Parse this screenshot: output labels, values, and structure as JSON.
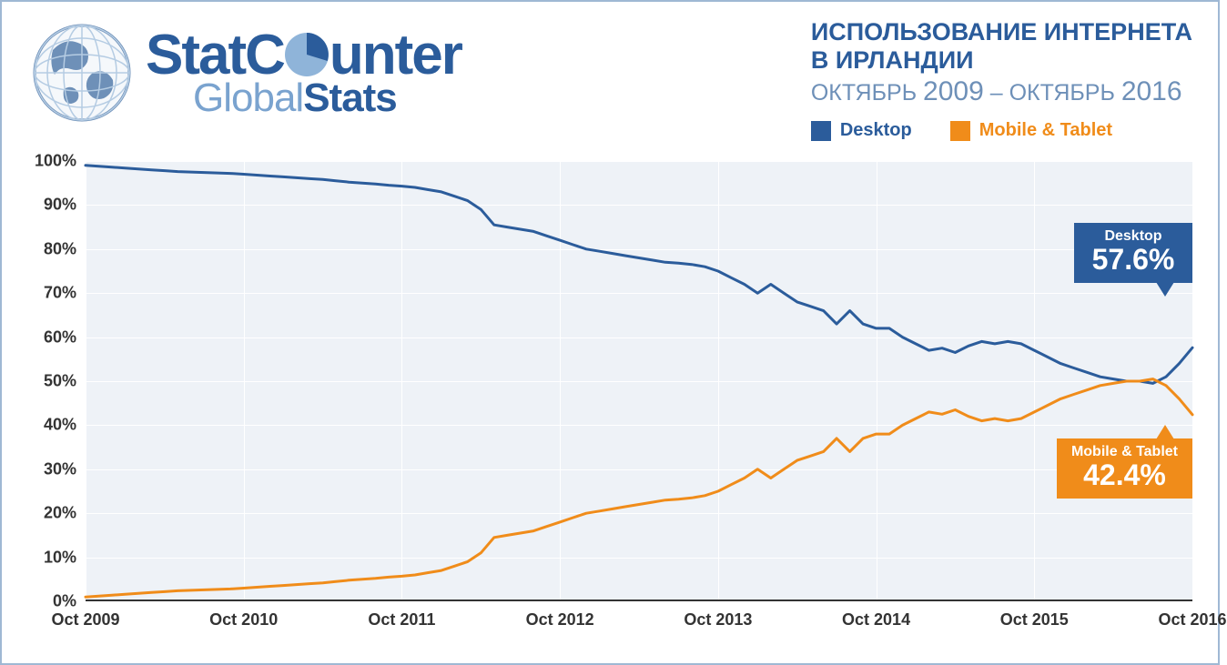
{
  "logo": {
    "line1_a": "StatC",
    "line1_b": "unter",
    "line2_a": "Global",
    "line2_b": "Stats",
    "blue": "#2b5c9b",
    "light_blue": "#7aa3cf",
    "pie_dark": "#2b5c9b",
    "pie_light": "#8fb4d9"
  },
  "title": {
    "line1": "ИСПОЛЬЗОВАНИЕ ИНТЕРНЕТА",
    "line2": "В ИРЛАНДИИ",
    "sub_prefix1": "ОКТЯБРЬ ",
    "year1": "2009",
    "sep": " – ",
    "sub_prefix2": "ОКТЯБРЬ ",
    "year2": "2016",
    "main_color": "#2b5c9b",
    "sub_color": "#6e90b8"
  },
  "legend": [
    {
      "label": "Desktop",
      "color": "#2b5c9b"
    },
    {
      "label": "Mobile & Tablet",
      "color": "#f08c1a"
    }
  ],
  "chart": {
    "type": "line",
    "background_color": "#eef2f7",
    "grid_color": "#ffffff",
    "axis_color": "#333333",
    "line_width": 3,
    "ylim": [
      0,
      100
    ],
    "ytick_step": 10,
    "yticks": [
      0,
      10,
      20,
      30,
      40,
      50,
      60,
      70,
      80,
      90,
      100
    ],
    "ytick_suffix": "%",
    "xlim": [
      0,
      84
    ],
    "xtick_positions": [
      0,
      12,
      24,
      36,
      48,
      60,
      72,
      84
    ],
    "xtick_labels": [
      "Oct 2009",
      "Oct 2010",
      "Oct 2011",
      "Oct 2012",
      "Oct 2013",
      "Oct 2014",
      "Oct 2015",
      "Oct 2016"
    ],
    "series": [
      {
        "name": "Desktop",
        "color": "#2b5c9b",
        "values": [
          99.0,
          98.8,
          98.6,
          98.4,
          98.2,
          98.0,
          97.8,
          97.6,
          97.5,
          97.4,
          97.3,
          97.2,
          97.0,
          96.8,
          96.6,
          96.4,
          96.2,
          96.0,
          95.8,
          95.5,
          95.2,
          95.0,
          94.8,
          94.5,
          94.3,
          94.0,
          93.5,
          93.0,
          92.0,
          91.0,
          89.0,
          85.5,
          85.0,
          84.5,
          84.0,
          83.0,
          82.0,
          81.0,
          80.0,
          79.5,
          79.0,
          78.5,
          78.0,
          77.5,
          77.0,
          76.8,
          76.5,
          76.0,
          75.0,
          73.5,
          72.0,
          70.0,
          72.0,
          70.0,
          68.0,
          67.0,
          66.0,
          63.0,
          66.0,
          63.0,
          62.0,
          62.0,
          60.0,
          58.5,
          57.0,
          57.5,
          56.5,
          58.0,
          59.0,
          58.5,
          59.0,
          58.5,
          57.0,
          55.5,
          54.0,
          53.0,
          52.0,
          51.0,
          50.5,
          50.0,
          50.0,
          49.5,
          51.0,
          54.0,
          57.6
        ]
      },
      {
        "name": "Mobile & Tablet",
        "color": "#f08c1a",
        "values": [
          1.0,
          1.2,
          1.4,
          1.6,
          1.8,
          2.0,
          2.2,
          2.4,
          2.5,
          2.6,
          2.7,
          2.8,
          3.0,
          3.2,
          3.4,
          3.6,
          3.8,
          4.0,
          4.2,
          4.5,
          4.8,
          5.0,
          5.2,
          5.5,
          5.7,
          6.0,
          6.5,
          7.0,
          8.0,
          9.0,
          11.0,
          14.5,
          15.0,
          15.5,
          16.0,
          17.0,
          18.0,
          19.0,
          20.0,
          20.5,
          21.0,
          21.5,
          22.0,
          22.5,
          23.0,
          23.2,
          23.5,
          24.0,
          25.0,
          26.5,
          28.0,
          30.0,
          28.0,
          30.0,
          32.0,
          33.0,
          34.0,
          37.0,
          34.0,
          37.0,
          38.0,
          38.0,
          40.0,
          41.5,
          43.0,
          42.5,
          43.5,
          42.0,
          41.0,
          41.5,
          41.0,
          41.5,
          43.0,
          44.5,
          46.0,
          47.0,
          48.0,
          49.0,
          49.5,
          50.0,
          50.0,
          50.5,
          49.0,
          46.0,
          42.4
        ]
      }
    ],
    "callouts": [
      {
        "series": "Desktop",
        "label": "Desktop",
        "value": "57.6%",
        "bg": "#2b5c9b",
        "y": 79,
        "tail": "down"
      },
      {
        "series": "Mobile & Tablet",
        "label": "Mobile & Tablet",
        "value": "42.4%",
        "bg": "#f08c1a",
        "y": 30,
        "tail": "up"
      }
    ],
    "label_fontsize": 18,
    "label_fontweight": 700
  }
}
